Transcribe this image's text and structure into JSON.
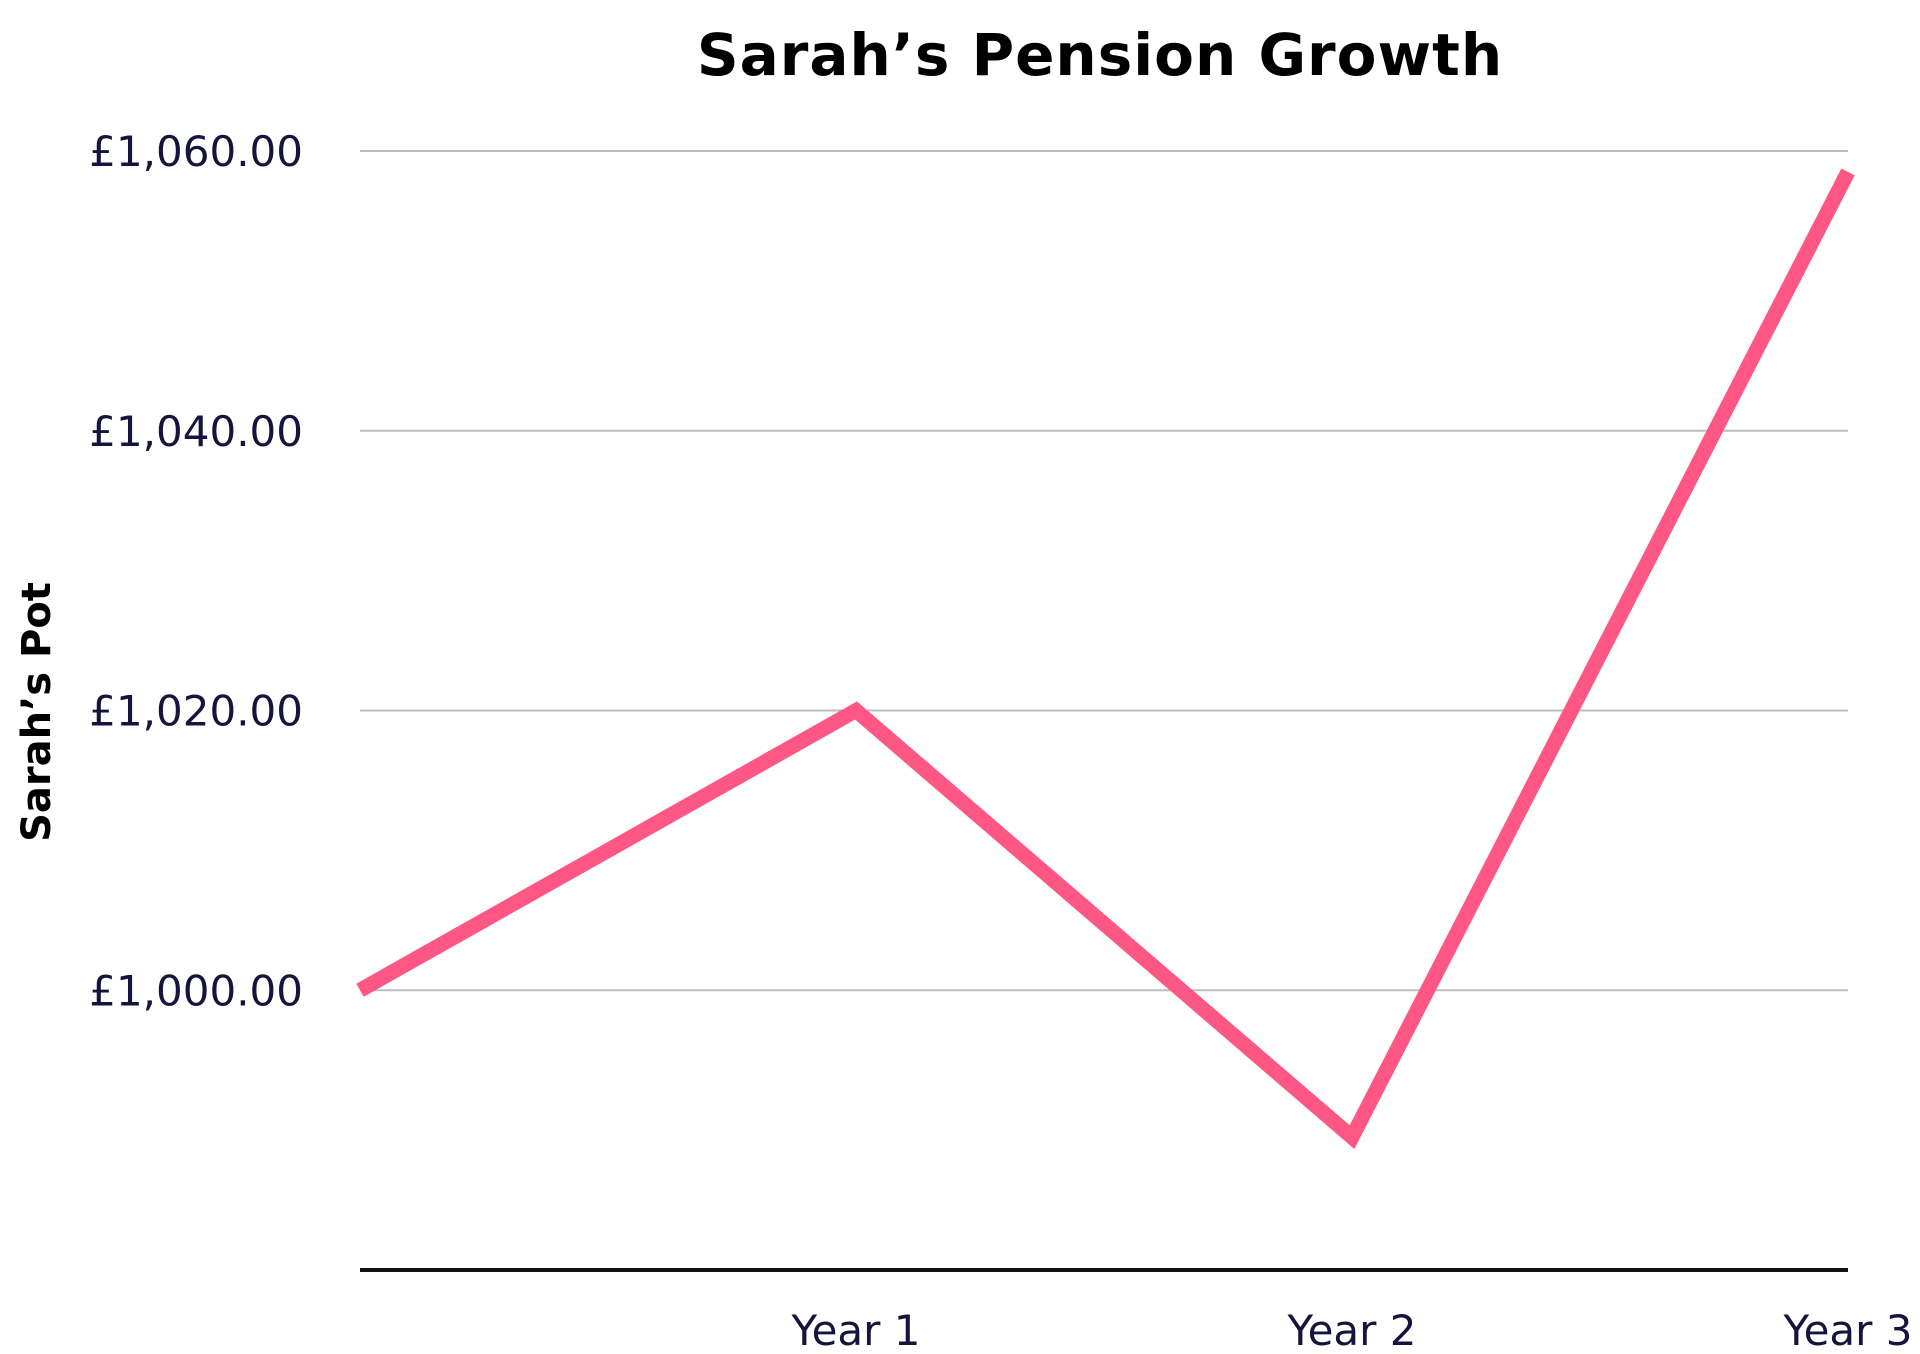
{
  "chart_data": {
    "type": "line",
    "title": "Sarah’s Pension Growth",
    "xlabel": "",
    "ylabel": "Sarah’s Pot",
    "categories": [
      "",
      "Year 1",
      "Year 2",
      "Year 3"
    ],
    "series": [
      {
        "values": [
          1000,
          1020,
          989.5,
          1058.5
        ],
        "color": "#ff5784"
      }
    ],
    "ylim": [
      980,
      1060
    ],
    "yticks": [
      1000,
      1020,
      1040,
      1060
    ],
    "ytick_labels": [
      "£1,000.00",
      "£1,020.00",
      "£1,040.00",
      "£1,060.00"
    ],
    "grid": true,
    "legend": "none",
    "colors": {
      "title": "#000000",
      "tick_labels": "#14143c",
      "grid": "#bdbdbd",
      "baseline": "#111111"
    }
  }
}
